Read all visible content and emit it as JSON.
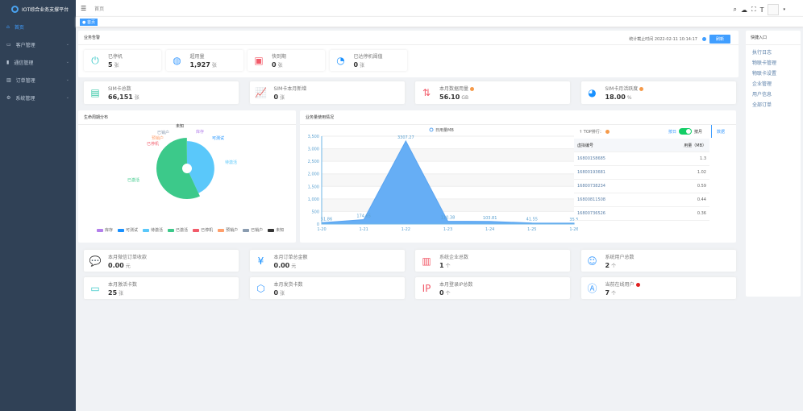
{
  "app": {
    "title": "IOT综合业务支撑平台"
  },
  "sidebar": {
    "items": [
      {
        "label": "首页",
        "icon": "home-icon"
      },
      {
        "label": "客户管理",
        "icon": "monitor-icon"
      },
      {
        "label": "通信管理",
        "icon": "sim-icon"
      },
      {
        "label": "订单管理",
        "icon": "bar-chart-icon"
      },
      {
        "label": "系统管理",
        "icon": "gear-icon"
      }
    ]
  },
  "header": {
    "breadcrumb": "首页",
    "tag": "首页"
  },
  "alert": {
    "title": "业务告警",
    "stat_time_label": "统计截止时间 2022-02-11 10:14:17",
    "refresh": "刷新",
    "items": [
      {
        "label": "已停机",
        "value": "5",
        "unit": "张"
      },
      {
        "label": "超用量",
        "value": "1,927",
        "unit": "张"
      },
      {
        "label": "快到期",
        "value": "0",
        "unit": "张"
      },
      {
        "label": "已达停机阈值",
        "value": "0",
        "unit": "张"
      }
    ]
  },
  "stats": [
    {
      "label": "SIM卡总数",
      "value": "66,151",
      "unit": "张"
    },
    {
      "label": "SIM卡本月新增",
      "value": "0",
      "unit": "张"
    },
    {
      "label": "本月数据用量",
      "value": "56.10",
      "unit": "GB"
    },
    {
      "label": "SIM卡月活跃度",
      "value": "18.00",
      "unit": "%"
    }
  ],
  "pie": {
    "title": "生命周期分布"
  },
  "line": {
    "title": "业务量使用情况"
  },
  "top": {
    "title": "TOP排行：",
    "by_day": "按日",
    "by_month": "按月",
    "tab": "数据",
    "toggle_on": true,
    "headers": [
      "虚拟编号",
      "用量（MB）"
    ],
    "rows": [
      [
        "16800158685",
        "1.3"
      ],
      [
        "16800193681",
        "1.02"
      ],
      [
        "16800738234",
        "0.59"
      ],
      [
        "16800811508",
        "0.44"
      ],
      [
        "16800736526",
        "0.36"
      ]
    ]
  },
  "bottom": [
    {
      "label": "本月微信订单收款",
      "value": "0.00",
      "unit": "元"
    },
    {
      "label": "本月订单总金额",
      "value": "0.00",
      "unit": "元"
    },
    {
      "label": "系统企业总数",
      "value": "1",
      "unit": "个"
    },
    {
      "label": "系统用户总数",
      "value": "2",
      "unit": "个"
    },
    {
      "label": "本月激活卡数",
      "value": "25",
      "unit": "张"
    },
    {
      "label": "本月发货卡数",
      "value": "0",
      "unit": "张"
    },
    {
      "label": "本月登录IP总数",
      "value": "0",
      "unit": "个"
    },
    {
      "label": "当前在线用户",
      "value": "7",
      "unit": "个"
    }
  ],
  "quick": {
    "title": "快捷入口",
    "links": [
      "执行日志",
      "物联卡管理",
      "物联卡设置",
      "企业管理",
      "用户信息",
      "全部订单"
    ]
  },
  "colors": {
    "accent": "#409eff",
    "sidebar": "#304156"
  },
  "chart_data": [
    {
      "type": "pie",
      "title": "生命周期分布",
      "categories": [
        "库存",
        "可测试",
        "待激活",
        "已激活",
        "已停机",
        "预销户",
        "已销户",
        "未知"
      ],
      "values": [
        0,
        0,
        28500,
        37600,
        5,
        10,
        10,
        26
      ],
      "colors": [
        "#b37feb",
        "#1890ff",
        "#5ac8fa",
        "#3cc98a",
        "#f25b6a",
        "#ff9f6b",
        "#8a9cb0",
        "#333333"
      ],
      "legend_position": "bottom"
    },
    {
      "type": "area",
      "title": "业务量使用情况",
      "series": [
        {
          "name": "日用量MB",
          "values": [
            51.86,
            174.65,
            3307.27,
            110.38,
            103.81,
            41.55,
            35.5
          ]
        }
      ],
      "categories": [
        "1-20",
        "1-21",
        "1-22",
        "1-23",
        "1-24",
        "1-25",
        "1-26"
      ],
      "ylim": [
        0,
        3500
      ],
      "yticks": [
        "0",
        "500",
        "1,000",
        "1,500",
        "2,000",
        "2,500",
        "3,000",
        "3,500"
      ],
      "legend_position": "top"
    }
  ]
}
